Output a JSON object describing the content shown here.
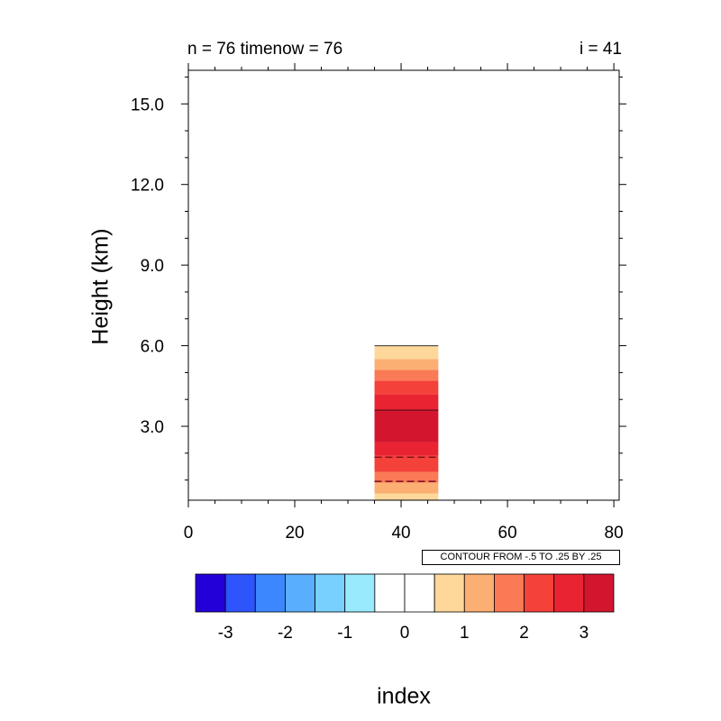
{
  "title_left": "n = 76 timenow = 76",
  "title_right": "i = 41",
  "contour_info": "CONTOUR FROM -.5 TO .25 BY .25",
  "chart_data": {
    "type": "heatmap",
    "xlabel": "",
    "ylabel": "Height (km)",
    "xlim": [
      0,
      81
    ],
    "ylim": [
      0.25,
      16.25
    ],
    "x_ticks": [
      0,
      20,
      40,
      60,
      80
    ],
    "y_ticks": [
      3.0,
      6.0,
      9.0,
      12.0,
      15.0
    ],
    "y_tick_labels": [
      "3.0",
      "6.0",
      "9.0",
      "12.0",
      "15.0"
    ],
    "column": {
      "x_range": [
        35,
        47
      ],
      "layers": [
        {
          "y0": 0.25,
          "y1": 0.5,
          "value": 0.75
        },
        {
          "y0": 0.5,
          "y1": 0.9,
          "value": 1.25
        },
        {
          "y0": 0.9,
          "y1": 1.3,
          "value": 1.75
        },
        {
          "y0": 1.3,
          "y1": 1.9,
          "value": 2.25
        },
        {
          "y0": 1.9,
          "y1": 2.4,
          "value": 2.75
        },
        {
          "y0": 2.4,
          "y1": 3.6,
          "value": 3.25
        },
        {
          "y0": 3.6,
          "y1": 4.2,
          "value": 2.75
        },
        {
          "y0": 4.2,
          "y1": 4.7,
          "value": 2.25
        },
        {
          "y0": 4.7,
          "y1": 5.1,
          "value": 1.75
        },
        {
          "y0": 5.1,
          "y1": 5.5,
          "value": 1.25
        },
        {
          "y0": 5.5,
          "y1": 6.0,
          "value": 0.75
        }
      ],
      "contour_lines": [
        {
          "y": 3.6,
          "style": "solid"
        },
        {
          "y": 1.85,
          "style": "dashed"
        },
        {
          "y": 0.95,
          "style": "dashed"
        }
      ]
    },
    "colorbar": {
      "title": "index",
      "colors": [
        "#2400d8",
        "#2e54fb",
        "#3d87fe",
        "#5aaefe",
        "#78d0fe",
        "#9aeafd",
        "#ffffff",
        "#ffffff",
        "#fdd89a",
        "#fcaf73",
        "#fa7a55",
        "#f44139",
        "#ea2332",
        "#d3152e"
      ],
      "tick_labels": [
        "-3",
        "-2",
        "-1",
        "0",
        "1",
        "2",
        "3"
      ]
    }
  }
}
